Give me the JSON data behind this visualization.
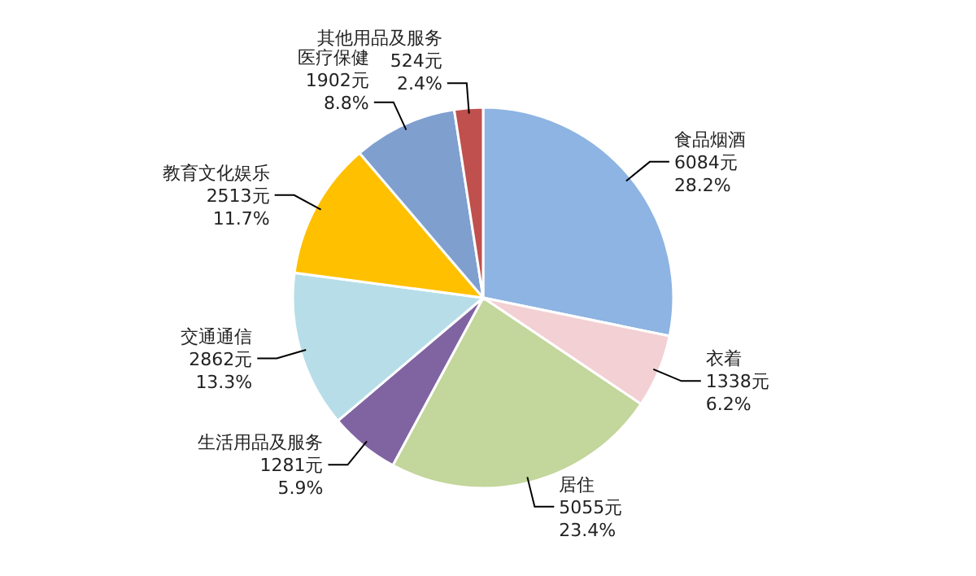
{
  "chart_data": {
    "type": "pie",
    "categories": [
      "食品烟酒",
      "衣着",
      "居住",
      "生活用品及服务",
      "交通通信",
      "教育文化娱乐",
      "医疗保健",
      "其他用品及服务"
    ],
    "values": [
      6084,
      1338,
      5055,
      1281,
      2862,
      2513,
      1902,
      524
    ],
    "value_labels": [
      "6084元\n28.2%",
      "1338元\n6.2%",
      "5055元\n23.4%",
      "1281元\n5.9%",
      "2862元\n13.3%",
      "2513元\n11.7%",
      "1902元\n8.8%",
      "524元\n2.4%"
    ],
    "colors": [
      "#8db4e2",
      "#f2d0d4",
      "#c3d69b",
      "#8064a2",
      "#b7dee8",
      "#ffc000",
      "#7f9fcf",
      "#c0504d"
    ],
    "legend": false
  }
}
